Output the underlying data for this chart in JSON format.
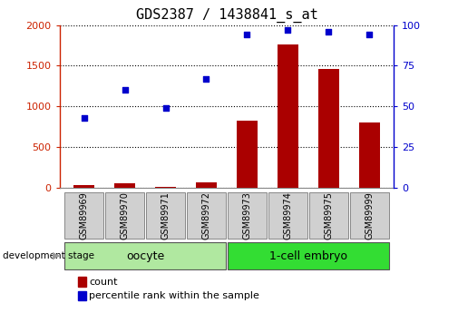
{
  "title": "GDS2387 / 1438841_s_at",
  "samples": [
    "GSM89969",
    "GSM89970",
    "GSM89971",
    "GSM89972",
    "GSM89973",
    "GSM89974",
    "GSM89975",
    "GSM89999"
  ],
  "count_values": [
    30,
    60,
    10,
    70,
    820,
    1760,
    1460,
    800
  ],
  "percentile_values": [
    43,
    60,
    49,
    67,
    94,
    97,
    96,
    94
  ],
  "groups": [
    {
      "label": "oocyte",
      "indices": [
        0,
        1,
        2,
        3
      ],
      "color": "#b0e8a0"
    },
    {
      "label": "1-cell embryo",
      "indices": [
        4,
        5,
        6,
        7
      ],
      "color": "#33dd33"
    }
  ],
  "ylim_left": [
    0,
    2000
  ],
  "ylim_right": [
    0,
    100
  ],
  "yticks_left": [
    0,
    500,
    1000,
    1500,
    2000
  ],
  "yticks_right": [
    0,
    25,
    50,
    75,
    100
  ],
  "bar_color": "#aa0000",
  "dot_color": "#0000cc",
  "left_tick_color": "#cc2200",
  "right_tick_color": "#0000cc",
  "grid_color": "#000000",
  "box_facecolor": "#d0d0d0",
  "box_edgecolor": "#888888",
  "legend_count_label": "count",
  "legend_percentile_label": "percentile rank within the sample",
  "dev_stage_label": "development stage",
  "title_fontsize": 11,
  "tick_fontsize": 8,
  "sample_fontsize": 7,
  "group_fontsize": 9,
  "legend_fontsize": 8
}
